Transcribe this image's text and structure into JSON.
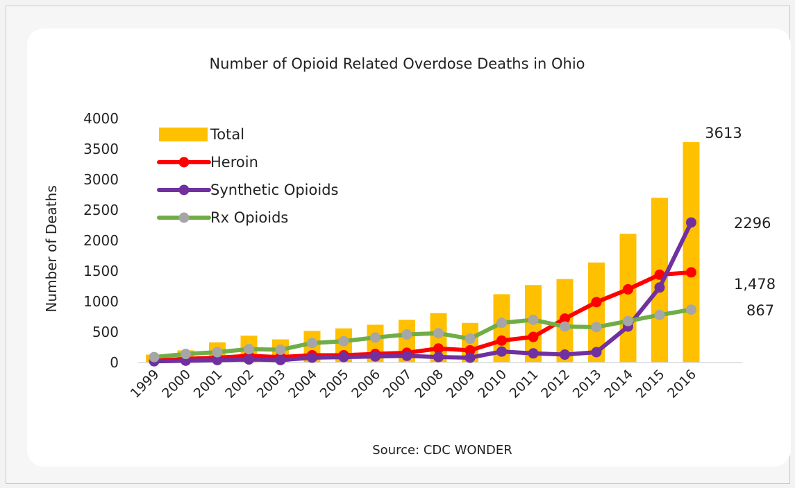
{
  "chart_data": {
    "type": "bar+line",
    "title": "Number of Opioid Related Overdose Deaths in Ohio",
    "source": "Source: CDC WONDER",
    "xlabel": "",
    "ylabel": "Number of Deaths",
    "ylim": [
      0,
      4000
    ],
    "yticks": [
      "0",
      "500",
      "1000",
      "1500",
      "2000",
      "2500",
      "3000",
      "3500",
      "4000"
    ],
    "categories": [
      "1999",
      "2000",
      "2001",
      "2002",
      "2003",
      "2004",
      "2005",
      "2006",
      "2007",
      "2008",
      "2009",
      "2010",
      "2011",
      "2012",
      "2013",
      "2014",
      "2015",
      "2016"
    ],
    "legend_position": "top-left",
    "grid": false,
    "series": [
      {
        "name": "Total",
        "type": "bar",
        "color": "#FFC000",
        "values": [
          130,
          200,
          330,
          440,
          380,
          520,
          560,
          620,
          700,
          810,
          650,
          1120,
          1270,
          1370,
          1640,
          2110,
          2700,
          3613
        ]
      },
      {
        "name": "Heroin",
        "type": "line",
        "color": "#FF0000",
        "values": [
          30,
          60,
          80,
          110,
          90,
          120,
          120,
          140,
          160,
          230,
          200,
          360,
          420,
          720,
          990,
          1200,
          1440,
          1478
        ]
      },
      {
        "name": "Synthetic Opioids",
        "type": "line",
        "color": "#7030A0",
        "values": [
          20,
          30,
          40,
          50,
          40,
          80,
          90,
          100,
          110,
          90,
          80,
          180,
          150,
          130,
          170,
          590,
          1230,
          2296
        ]
      },
      {
        "name": "Rx Opioids",
        "type": "line",
        "color": "#70AD47",
        "markerColor": "#A6A6A6",
        "values": [
          90,
          140,
          170,
          220,
          210,
          320,
          350,
          410,
          460,
          480,
          390,
          650,
          700,
          590,
          580,
          680,
          780,
          867
        ]
      }
    ],
    "data_labels": [
      {
        "text": "3613",
        "series": "Total",
        "index": 17
      },
      {
        "text": "2296",
        "series": "Synthetic Opioids",
        "index": 17
      },
      {
        "text": "1,478",
        "series": "Heroin",
        "index": 17
      },
      {
        "text": "867",
        "series": "Rx Opioids",
        "index": 17
      }
    ]
  }
}
